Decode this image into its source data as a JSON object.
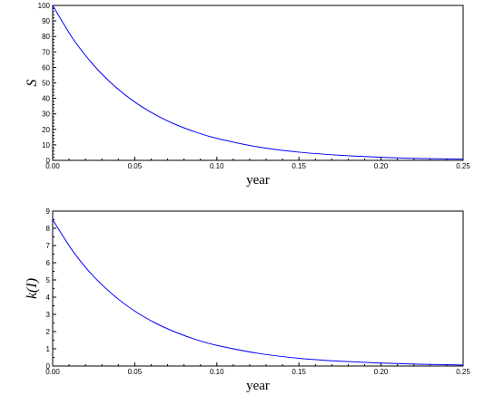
{
  "chart_data": [
    {
      "type": "line",
      "xlabel": "year",
      "ylabel": "S",
      "xlim": [
        0,
        0.25
      ],
      "ylim": [
        0,
        100
      ],
      "x_ticks": [
        "0.00",
        "0.05",
        "0.10",
        "0.15",
        "0.20",
        "0.25"
      ],
      "y_ticks": [
        "0",
        "10",
        "20",
        "30",
        "40",
        "50",
        "60",
        "70",
        "80",
        "90",
        "100"
      ],
      "grid": false,
      "line_color": "#0000ff",
      "series": [
        {
          "x": [
            0,
            0.0125,
            0.025,
            0.0375,
            0.05,
            0.0625,
            0.075,
            0.0875,
            0.1,
            0.125,
            0.15,
            0.175,
            0.2,
            0.225,
            0.25
          ],
          "values": [
            100,
            78.3,
            61.4,
            48.1,
            37.7,
            29.5,
            23.1,
            18.1,
            14.2,
            8.7,
            5.3,
            3.3,
            2.0,
            1.2,
            0.8
          ]
        }
      ]
    },
    {
      "type": "line",
      "xlabel": "year",
      "ylabel": "k(I)",
      "xlim": [
        0,
        0.25
      ],
      "ylim": [
        0,
        9
      ],
      "x_ticks": [
        "0.00",
        "0.05",
        "0.10",
        "0.15",
        "0.20",
        "0.25"
      ],
      "y_ticks": [
        "0",
        "1",
        "2",
        "3",
        "4",
        "5",
        "6",
        "7",
        "8",
        "9"
      ],
      "grid": false,
      "line_color": "#0000ff",
      "series": [
        {
          "x": [
            0,
            0.0125,
            0.025,
            0.0375,
            0.05,
            0.0625,
            0.075,
            0.0875,
            0.1,
            0.125,
            0.15,
            0.175,
            0.2,
            0.225,
            0.25
          ],
          "values": [
            8.5,
            6.65,
            5.2,
            4.08,
            3.19,
            2.5,
            1.96,
            1.53,
            1.2,
            0.74,
            0.45,
            0.28,
            0.17,
            0.1,
            0.06
          ]
        }
      ]
    }
  ]
}
